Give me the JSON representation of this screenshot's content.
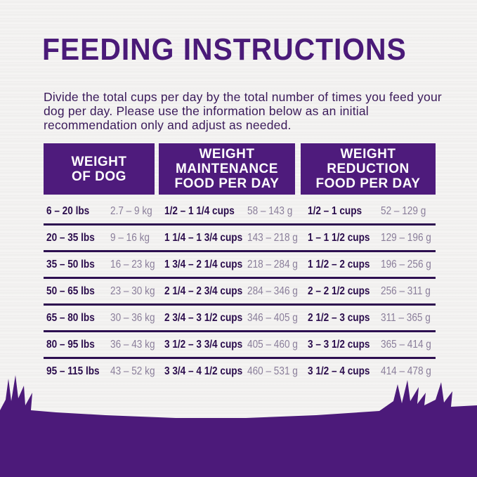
{
  "title": "FEEDING INSTRUCTIONS",
  "intro": "Divide the total cups per day by the total number of times you feed your dog per day. Please use the information below as an initial recommendation only and adjust as needed.",
  "headers": {
    "weight_line1": "WEIGHT",
    "weight_line2": "OF DOG",
    "maint_line1": "WEIGHT",
    "maint_line2": "MAINTENANCE",
    "maint_line3": "FOOD PER DAY",
    "red_line1": "WEIGHT",
    "red_line2": "REDUCTION",
    "red_line3": "FOOD PER DAY"
  },
  "rows": [
    {
      "lbs": "6 – 20 lbs",
      "kg": "2.7 – 9 kg",
      "maint_cups": "1/2 – 1 1/4 cups",
      "maint_g": "58 – 143 g",
      "red_cups": "1/2 – 1 cups",
      "red_g": "52 – 129 g"
    },
    {
      "lbs": "20 – 35 lbs",
      "kg": "9 – 16 kg",
      "maint_cups": "1 1/4 – 1 3/4 cups",
      "maint_g": "143 – 218 g",
      "red_cups": "1 – 1 1/2 cups",
      "red_g": "129 – 196 g"
    },
    {
      "lbs": "35 – 50 lbs",
      "kg": "16 – 23 kg",
      "maint_cups": "1 3/4 – 2 1/4 cups",
      "maint_g": "218 – 284 g",
      "red_cups": "1 1/2 – 2 cups",
      "red_g": "196 – 256 g"
    },
    {
      "lbs": "50 – 65 lbs",
      "kg": "23 – 30 kg",
      "maint_cups": "2 1/4 – 2 3/4 cups",
      "maint_g": "284 – 346 g",
      "red_cups": "2 – 2 1/2 cups",
      "red_g": "256 – 311 g"
    },
    {
      "lbs": "65 – 80 lbs",
      "kg": "30 – 36 kg",
      "maint_cups": "2 3/4 – 3 1/2 cups",
      "maint_g": "346 – 405 g",
      "red_cups": "2 1/2 – 3 cups",
      "red_g": "311 – 365 g"
    },
    {
      "lbs": "80 – 95 lbs",
      "kg": "36 – 43 kg",
      "maint_cups": "3 1/2 – 3 3/4 cups",
      "maint_g": "405 – 460 g",
      "red_cups": "3 – 3 1/2 cups",
      "red_g": "365 – 414 g"
    },
    {
      "lbs": "95 – 115 lbs",
      "kg": "43 – 52 kg",
      "maint_cups": "3 3/4 – 4 1/2 cups",
      "maint_g": "460 – 531 g",
      "red_cups": "3 1/2 – 4 cups",
      "red_g": "414 – 478 g"
    }
  ],
  "colors": {
    "brand_purple": "#4e1b7c",
    "text_dark": "#2a0c4c",
    "text_muted": "#8a7e9a"
  }
}
